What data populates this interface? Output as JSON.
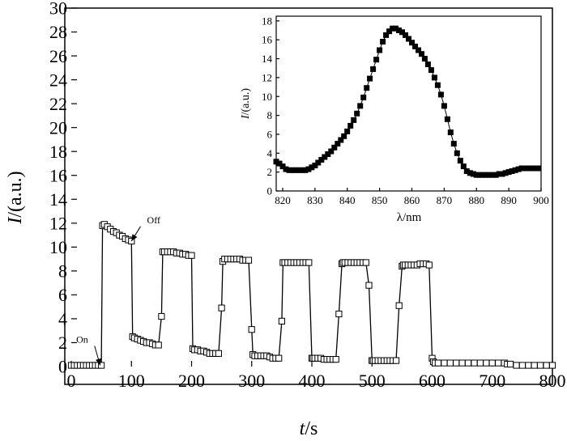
{
  "chart_data": [
    {
      "type": "line",
      "xlabel_italic": "t",
      "xlabel_unit": "/s",
      "ylabel_italic": "I",
      "ylabel_unit": "/(a.u.)",
      "xlim": [
        0,
        800
      ],
      "ylim": [
        0,
        30
      ],
      "xticks": [
        0,
        100,
        200,
        300,
        400,
        500,
        600,
        700,
        800
      ],
      "yticks": [
        0,
        2,
        4,
        6,
        8,
        10,
        12,
        14,
        16,
        18,
        20,
        22,
        24,
        26,
        28,
        30
      ],
      "annotations": [
        {
          "text": "On",
          "x": 48,
          "y": 0.1,
          "label_x": 28,
          "label_y": 2.0
        },
        {
          "text": "Off",
          "x": 100,
          "y": 10.5,
          "label_x": 126,
          "label_y": 12.0
        }
      ],
      "grid": false,
      "series": [
        {
          "marker": "open-square",
          "x": [
            0,
            5,
            10,
            15,
            20,
            25,
            30,
            35,
            40,
            45,
            50,
            52,
            55,
            60,
            65,
            70,
            75,
            80,
            85,
            90,
            95,
            100,
            102,
            105,
            110,
            115,
            120,
            125,
            130,
            135,
            140,
            145,
            150,
            152,
            155,
            160,
            165,
            170,
            175,
            180,
            185,
            190,
            195,
            200,
            202,
            205,
            210,
            215,
            220,
            225,
            230,
            235,
            240,
            245,
            250,
            252,
            255,
            260,
            265,
            270,
            275,
            280,
            285,
            290,
            295,
            300,
            302,
            305,
            310,
            315,
            320,
            325,
            330,
            335,
            340,
            345,
            350,
            352,
            355,
            360,
            365,
            370,
            375,
            380,
            385,
            390,
            395,
            400,
            402,
            405,
            410,
            415,
            420,
            425,
            430,
            435,
            440,
            445,
            450,
            452,
            455,
            460,
            465,
            470,
            475,
            480,
            485,
            490,
            495,
            500,
            502,
            505,
            510,
            515,
            520,
            525,
            530,
            535,
            540,
            545,
            550,
            552,
            555,
            560,
            565,
            570,
            575,
            580,
            585,
            590,
            595,
            600,
            602,
            605,
            610,
            620,
            630,
            640,
            650,
            660,
            670,
            680,
            690,
            700,
            710,
            720,
            725,
            730,
            740,
            750,
            760,
            770,
            780,
            790,
            800
          ],
          "y": [
            0.1,
            0.1,
            0.1,
            0.1,
            0.1,
            0.1,
            0.1,
            0.1,
            0.1,
            0.1,
            0.1,
            11.8,
            11.9,
            11.7,
            11.5,
            11.3,
            11.2,
            11.0,
            10.9,
            10.7,
            10.6,
            10.5,
            2.5,
            2.4,
            2.3,
            2.2,
            2.1,
            2.0,
            2.0,
            1.9,
            1.8,
            1.8,
            4.2,
            9.6,
            9.6,
            9.6,
            9.6,
            9.6,
            9.5,
            9.5,
            9.4,
            9.4,
            9.3,
            9.3,
            1.5,
            1.4,
            1.4,
            1.3,
            1.3,
            1.2,
            1.1,
            1.1,
            1.1,
            1.1,
            4.9,
            8.8,
            9.0,
            9.0,
            9.0,
            9.0,
            9.0,
            9.0,
            8.9,
            8.9,
            8.9,
            3.1,
            1.0,
            0.9,
            0.9,
            0.9,
            0.9,
            0.9,
            0.8,
            0.7,
            0.7,
            0.7,
            3.8,
            8.7,
            8.7,
            8.7,
            8.7,
            8.7,
            8.7,
            8.7,
            8.7,
            8.7,
            8.7,
            0.7,
            0.7,
            0.7,
            0.7,
            0.7,
            0.6,
            0.6,
            0.6,
            0.6,
            0.6,
            4.4,
            8.6,
            8.7,
            8.7,
            8.7,
            8.7,
            8.7,
            8.7,
            8.7,
            8.7,
            8.7,
            6.8,
            0.5,
            0.5,
            0.5,
            0.5,
            0.5,
            0.5,
            0.5,
            0.5,
            0.5,
            0.5,
            5.1,
            8.4,
            8.5,
            8.5,
            8.5,
            8.5,
            8.5,
            8.5,
            8.6,
            8.6,
            8.6,
            8.5,
            0.7,
            0.4,
            0.3,
            0.3,
            0.3,
            0.3,
            0.3,
            0.3,
            0.3,
            0.3,
            0.3,
            0.3,
            0.3,
            0.3,
            0.3,
            0.2,
            0.2,
            0.1,
            0.1,
            0.1,
            0.1,
            0.1,
            0.1,
            0.1
          ]
        }
      ]
    },
    {
      "type": "scatter",
      "xlabel": "λ/nm",
      "ylabel_italic": "I",
      "ylabel_unit": "/(a.u.)",
      "xlim": [
        818,
        900
      ],
      "ylim": [
        0,
        18.5
      ],
      "xticks": [
        820,
        830,
        840,
        850,
        860,
        870,
        880,
        890,
        900
      ],
      "yticks": [
        0,
        2,
        4,
        6,
        8,
        10,
        12,
        14,
        16,
        18
      ],
      "grid": false,
      "series": [
        {
          "marker": "filled-square",
          "x": [
            818,
            819,
            820,
            821,
            822,
            823,
            824,
            825,
            826,
            827,
            828,
            829,
            830,
            831,
            832,
            833,
            834,
            835,
            836,
            837,
            838,
            839,
            840,
            841,
            842,
            843,
            844,
            845,
            846,
            847,
            848,
            849,
            850,
            851,
            852,
            853,
            854,
            855,
            856,
            857,
            858,
            859,
            860,
            861,
            862,
            863,
            864,
            865,
            866,
            867,
            868,
            869,
            870,
            871,
            872,
            873,
            874,
            875,
            876,
            877,
            878,
            879,
            880,
            881,
            882,
            883,
            884,
            885,
            886,
            887,
            888,
            889,
            890,
            891,
            892,
            893,
            894,
            895,
            896,
            897,
            898,
            899
          ],
          "y": [
            3.1,
            2.9,
            2.6,
            2.3,
            2.2,
            2.2,
            2.2,
            2.2,
            2.2,
            2.2,
            2.3,
            2.5,
            2.7,
            3.0,
            3.3,
            3.6,
            3.9,
            4.2,
            4.6,
            5.0,
            5.4,
            5.8,
            6.3,
            6.9,
            7.5,
            8.2,
            9.0,
            9.9,
            10.9,
            11.9,
            12.9,
            13.9,
            14.9,
            15.8,
            16.5,
            16.9,
            17.2,
            17.2,
            17.0,
            16.8,
            16.5,
            16.1,
            15.7,
            15.3,
            14.9,
            14.5,
            14.0,
            13.4,
            12.8,
            12.0,
            11.2,
            10.2,
            9.0,
            7.6,
            6.2,
            5.0,
            4.0,
            3.2,
            2.6,
            2.1,
            1.9,
            1.8,
            1.7,
            1.7,
            1.7,
            1.7,
            1.7,
            1.7,
            1.7,
            1.8,
            1.8,
            1.9,
            2.0,
            2.1,
            2.2,
            2.3,
            2.4,
            2.4,
            2.4,
            2.4,
            2.4,
            2.4
          ]
        }
      ]
    }
  ]
}
